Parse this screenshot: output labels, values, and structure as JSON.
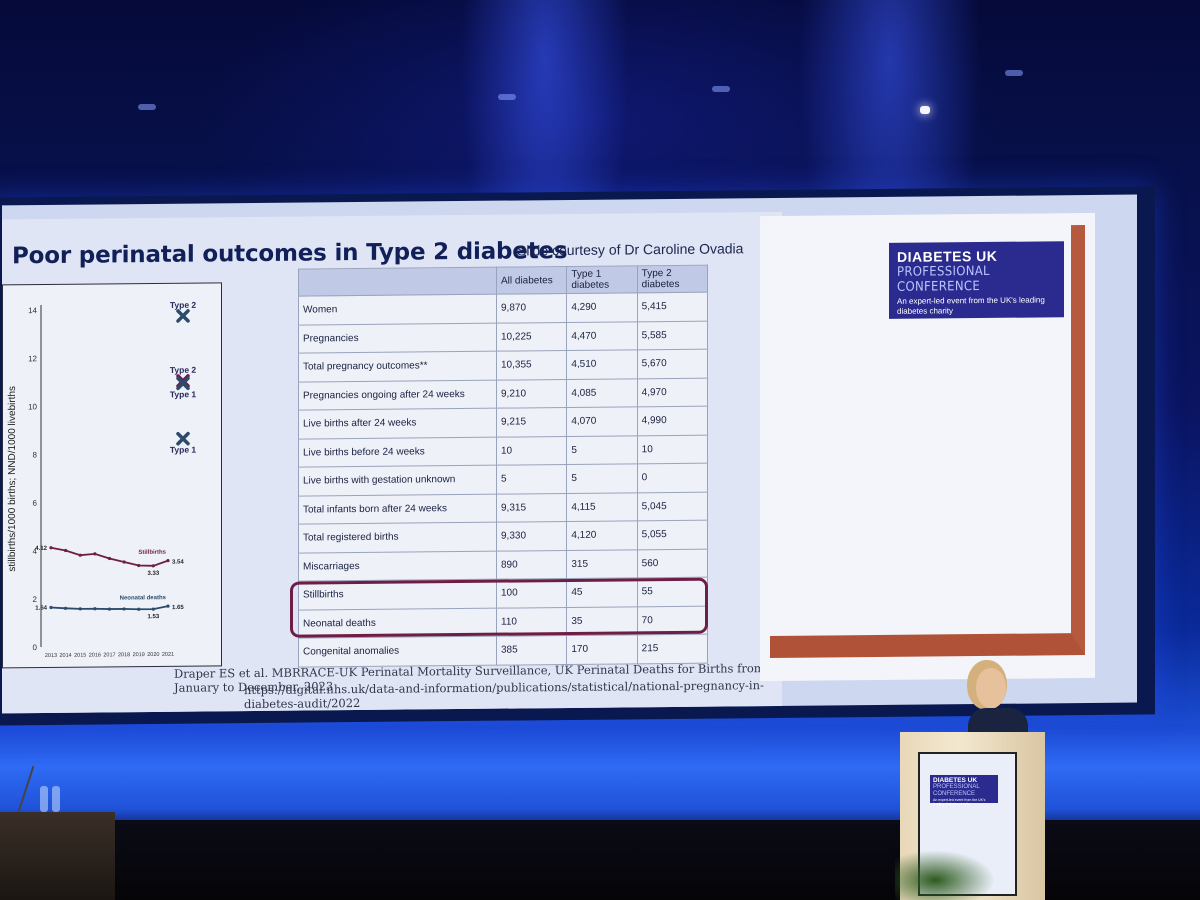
{
  "slide": {
    "title": "Poor perinatal outcomes in Type 2 diabetes",
    "courtesy": "Slide courtesy of Dr Caroline Ovadia",
    "reference_line1": "Draper ES et al. MBRRACE-UK Perinatal Mortality Surveillance, UK Perinatal Deaths for Births from January to December. 2023",
    "reference_line2": "https://digital.nhs.uk/data-and-information/publications/statistical/national-pregnancy-in-diabetes-audit/2022"
  },
  "chart_data": {
    "type": "line",
    "ylabel": "stillbirths/1000 births; NND/1000 livebirths",
    "ylim": [
      0,
      14
    ],
    "yticks": [
      "0",
      "2",
      "4",
      "6",
      "8",
      "10",
      "12",
      "14"
    ],
    "x": [
      "2013",
      "2014",
      "2015",
      "2016",
      "2017",
      "2018",
      "2019",
      "2020",
      "2021"
    ],
    "series": [
      {
        "name": "Stillbirths",
        "values": [
          4.12,
          4.0,
          3.8,
          3.85,
          3.65,
          3.5,
          3.35,
          3.33,
          3.54
        ],
        "color": "#6e1e45"
      },
      {
        "name": "Neonatal deaths",
        "values": [
          1.64,
          1.6,
          1.57,
          1.57,
          1.55,
          1.55,
          1.53,
          1.53,
          1.65
        ],
        "color": "#2a4a6e"
      }
    ],
    "point_labels": [
      {
        "text": "4.12",
        "series": 0,
        "index": 0,
        "pos": "left"
      },
      {
        "text": "3.33",
        "series": 0,
        "index": 7,
        "pos": "below"
      },
      {
        "text": "3.54",
        "series": 0,
        "index": 8,
        "pos": "right"
      },
      {
        "text": "1.64",
        "series": 1,
        "index": 0,
        "pos": "left"
      },
      {
        "text": "1.53",
        "series": 1,
        "index": 7,
        "pos": "below"
      },
      {
        "text": "1.65",
        "series": 1,
        "index": 8,
        "pos": "right"
      }
    ],
    "series_labels": [
      {
        "text": "Stillbirths",
        "series": 0
      },
      {
        "text": "Neonatal deaths",
        "series": 1
      }
    ],
    "markers": [
      {
        "label": "Type 2",
        "y": 13.7,
        "color": "#2a4a6e",
        "label_pos": "above"
      },
      {
        "label": "Type 2",
        "y": 11.0,
        "color": "#6e1e45",
        "label_pos": "above"
      },
      {
        "label": "Type 1",
        "y": 10.9,
        "color": "#2a4a6e",
        "label_pos": "below"
      },
      {
        "label": "Type 1",
        "y": 8.6,
        "color": "#2a4a6e",
        "label_pos": "below"
      }
    ]
  },
  "table": {
    "headers": [
      "",
      "All diabetes",
      "Type 1 diabetes",
      "Type 2 diabetes"
    ],
    "rows": [
      {
        "label": "Women",
        "values": [
          "9,870",
          "4,290",
          "5,415"
        ]
      },
      {
        "label": "Pregnancies",
        "values": [
          "10,225",
          "4,470",
          "5,585"
        ]
      },
      {
        "label": "Total pregnancy outcomes**",
        "values": [
          "10,355",
          "4,510",
          "5,670"
        ]
      },
      {
        "label": "Pregnancies ongoing after 24 weeks",
        "values": [
          "9,210",
          "4,085",
          "4,970"
        ]
      },
      {
        "label": "Live births after 24 weeks",
        "values": [
          "9,215",
          "4,070",
          "4,990"
        ]
      },
      {
        "label": "Live births before 24 weeks",
        "values": [
          "10",
          "5",
          "10"
        ]
      },
      {
        "label": "Live births with gestation unknown",
        "values": [
          "5",
          "5",
          "0"
        ]
      },
      {
        "label": "Total infants born after 24 weeks",
        "values": [
          "9,315",
          "4,115",
          "5,045"
        ]
      },
      {
        "label": "Total registered births",
        "values": [
          "9,330",
          "4,120",
          "5,055"
        ]
      },
      {
        "label": "Miscarriages",
        "values": [
          "890",
          "315",
          "560"
        ]
      },
      {
        "label": "Stillbirths",
        "values": [
          "100",
          "45",
          "55"
        ]
      },
      {
        "label": "Neonatal deaths",
        "values": [
          "110",
          "35",
          "70"
        ]
      },
      {
        "label": "Congenital anomalies",
        "values": [
          "385",
          "170",
          "215"
        ]
      }
    ]
  },
  "logo": {
    "brand": "DIABETES UK",
    "subtitle": "PROFESSIONAL CONFERENCE",
    "tagline": "An expert-led event from the UK's leading diabetes charity"
  },
  "podium_logo": {
    "brand": "DIABETES UK",
    "subtitle": "PROFESSIONAL CONFERENCE",
    "tagline": "An expert-led event from the UK's leading diabetes charity"
  },
  "colors": {
    "title": "#12205a",
    "highlight": "#6e1e45",
    "logo_bg": "#2b2a8e",
    "paint": "#b05238"
  }
}
